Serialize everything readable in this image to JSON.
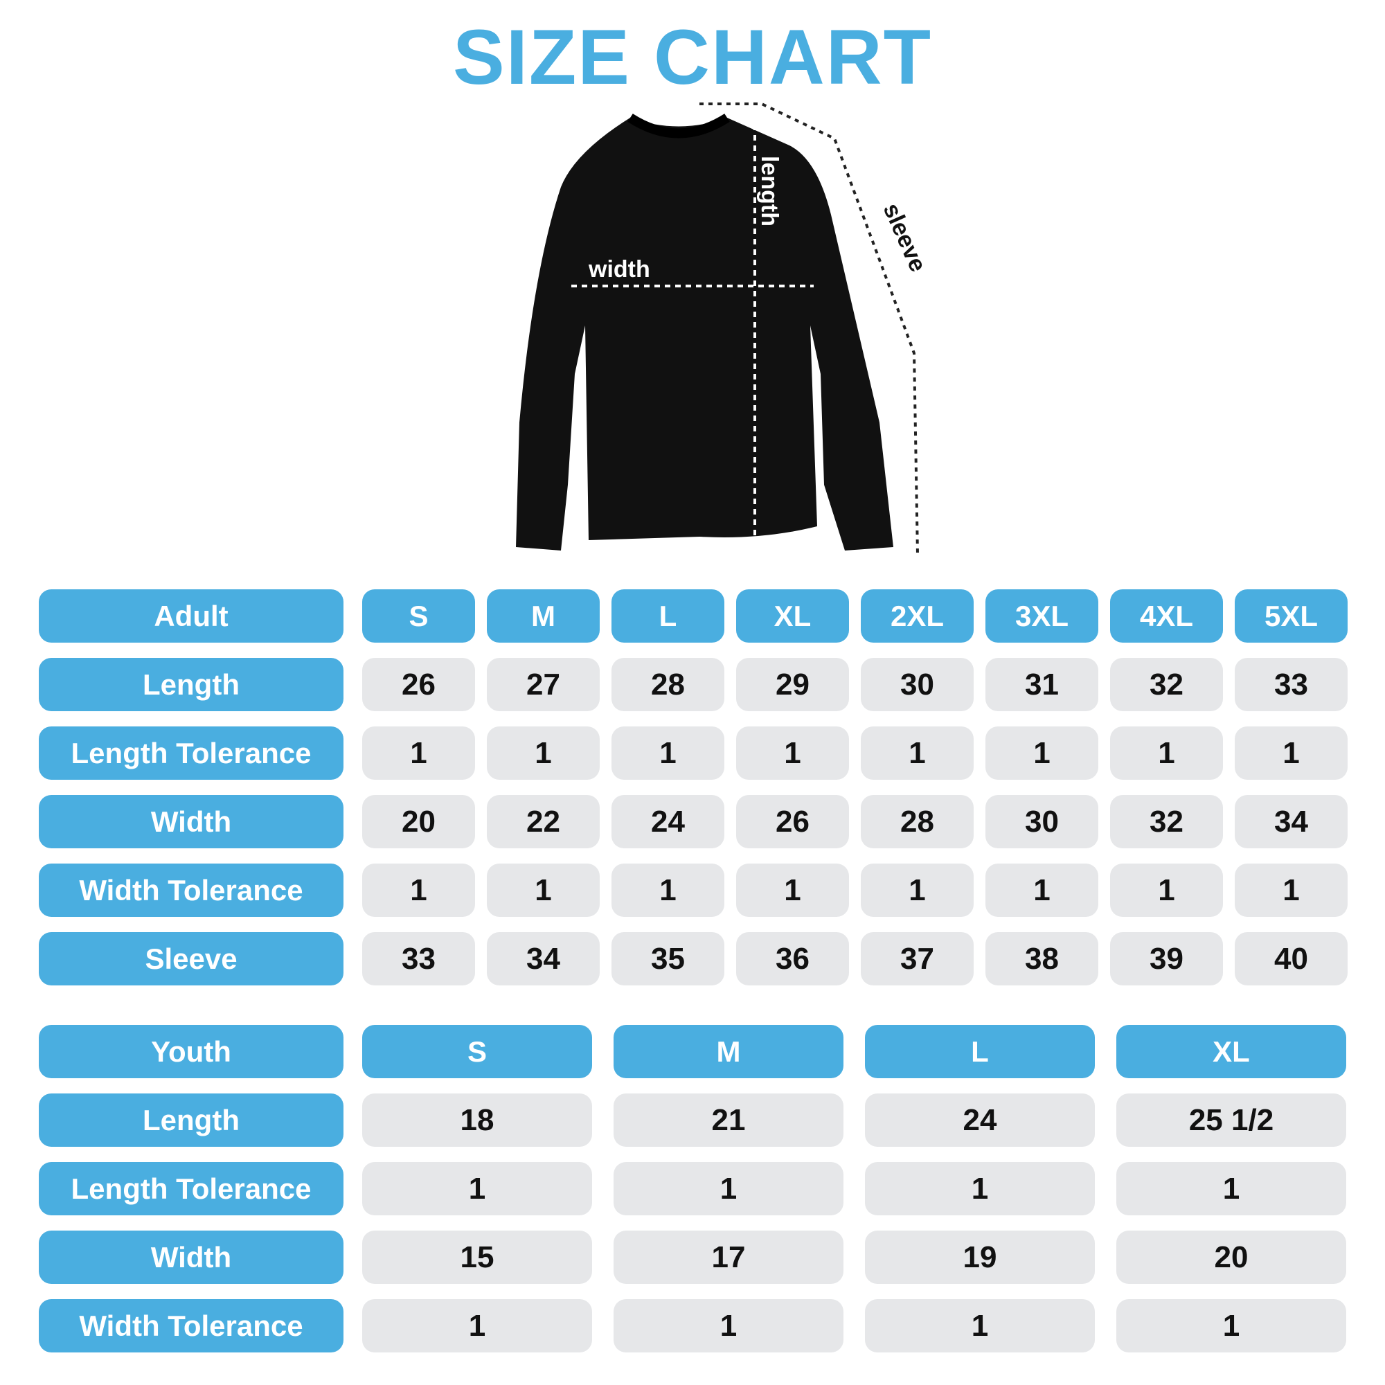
{
  "title": "SIZE CHART",
  "colors": {
    "accent": "#4aaee0",
    "cell_bg": "#e6e7e9",
    "text": "#111111"
  },
  "diagram": {
    "width_label": "width",
    "length_label": "length",
    "sleeve_label": "sleeve"
  },
  "adult": {
    "header": "Adult",
    "sizes": [
      "S",
      "M",
      "L",
      "XL",
      "2XL",
      "3XL",
      "4XL",
      "5XL"
    ],
    "rows": [
      {
        "label": "Length",
        "values": [
          "26",
          "27",
          "28",
          "29",
          "30",
          "31",
          "32",
          "33"
        ]
      },
      {
        "label": "Length Tolerance",
        "values": [
          "1",
          "1",
          "1",
          "1",
          "1",
          "1",
          "1",
          "1"
        ]
      },
      {
        "label": "Width",
        "values": [
          "20",
          "22",
          "24",
          "26",
          "28",
          "30",
          "32",
          "34"
        ]
      },
      {
        "label": "Width Tolerance",
        "values": [
          "1",
          "1",
          "1",
          "1",
          "1",
          "1",
          "1",
          "1"
        ]
      },
      {
        "label": "Sleeve",
        "values": [
          "33",
          "34",
          "35",
          "36",
          "37",
          "38",
          "39",
          "40"
        ]
      }
    ]
  },
  "youth": {
    "header": "Youth",
    "sizes": [
      "S",
      "M",
      "L",
      "XL"
    ],
    "rows": [
      {
        "label": "Length",
        "values": [
          "18",
          "21",
          "24",
          "25 1/2"
        ]
      },
      {
        "label": "Length Tolerance",
        "values": [
          "1",
          "1",
          "1",
          "1"
        ]
      },
      {
        "label": "Width",
        "values": [
          "15",
          "17",
          "19",
          "20"
        ]
      },
      {
        "label": "Width Tolerance",
        "values": [
          "1",
          "1",
          "1",
          "1"
        ]
      }
    ]
  }
}
